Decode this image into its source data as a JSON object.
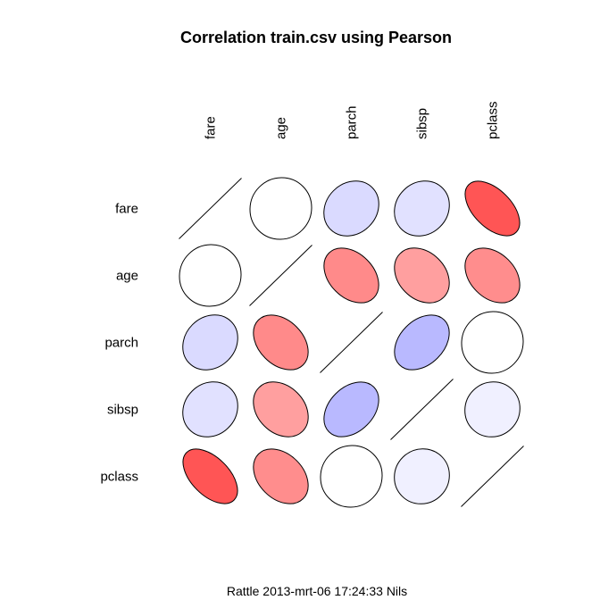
{
  "chart_data": {
    "type": "correlation-ellipse-matrix",
    "title": "Correlation train.csv using Pearson",
    "variables": [
      "fare",
      "age",
      "parch",
      "sibsp",
      "pclass"
    ],
    "matrix": [
      [
        1.0,
        0.0,
        0.2,
        0.16,
        -0.55
      ],
      [
        0.0,
        1.0,
        -0.38,
        -0.31,
        -0.37
      ],
      [
        0.2,
        -0.38,
        1.0,
        0.38,
        0.02
      ],
      [
        0.16,
        -0.31,
        0.38,
        1.0,
        0.08
      ],
      [
        -0.55,
        -0.37,
        0.02,
        0.08,
        1.0
      ]
    ],
    "colors": {
      "positive": "#9999ff",
      "negative": "#ff5555",
      "neutral": "#ffffff"
    },
    "footer": "Rattle 2013-mrt-06 17:24:33 Nils"
  }
}
